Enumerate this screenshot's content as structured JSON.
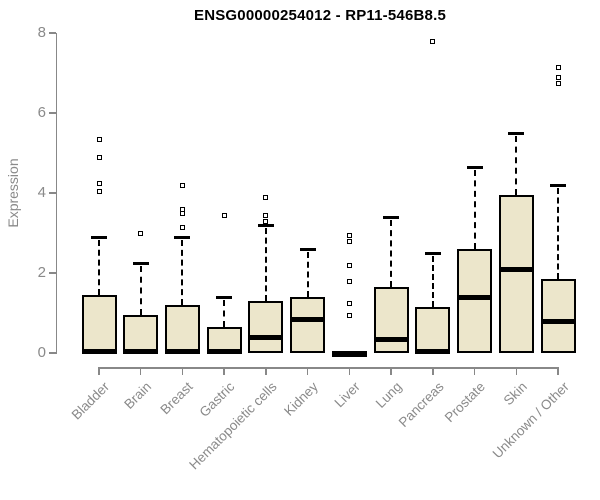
{
  "title": "ENSG00000254012 - RP11-546B8.5",
  "y_axis": {
    "label": "Expression"
  },
  "chart_data": {
    "type": "boxplot",
    "title": "ENSG00000254012 - RP11-546B8.5",
    "xlabel": "",
    "ylabel": "Expression",
    "ylim": [
      0,
      8
    ],
    "y_ticks": [
      0,
      2,
      4,
      6,
      8
    ],
    "grid": false,
    "box_fill_color": "#ece6cb",
    "box_line_color": "#000000",
    "axis_color": "#888888",
    "axis_text_color": "#8a8a8a",
    "categories": [
      "Bladder",
      "Brain",
      "Breast",
      "Gastric",
      "Hematopoietic cells",
      "Kidney",
      "Liver",
      "Lung",
      "Pancreas",
      "Prostate",
      "Skin",
      "Unknown / Other"
    ],
    "series": [
      {
        "category": "Bladder",
        "whisker_low": 0,
        "q1": 0,
        "median": 0.05,
        "q3": 1.45,
        "whisker_high": 2.9,
        "outliers": [
          4.05,
          4.25,
          4.9,
          5.35
        ]
      },
      {
        "category": "Brain",
        "whisker_low": 0,
        "q1": 0,
        "median": 0.05,
        "q3": 0.95,
        "whisker_high": 2.25,
        "outliers": [
          3.0
        ]
      },
      {
        "category": "Breast",
        "whisker_low": 0,
        "q1": 0,
        "median": 0.05,
        "q3": 1.2,
        "whisker_high": 2.9,
        "outliers": [
          3.15,
          3.5,
          3.6,
          4.2
        ]
      },
      {
        "category": "Gastric",
        "whisker_low": 0,
        "q1": 0,
        "median": 0.05,
        "q3": 0.65,
        "whisker_high": 1.4,
        "outliers": [
          3.45
        ]
      },
      {
        "category": "Hematopoietic cells",
        "whisker_low": 0,
        "q1": 0,
        "median": 0.4,
        "q3": 1.3,
        "whisker_high": 3.2,
        "outliers": [
          3.3,
          3.45,
          3.9
        ]
      },
      {
        "category": "Kidney",
        "whisker_low": 0,
        "q1": 0,
        "median": 0.85,
        "q3": 1.4,
        "whisker_high": 2.6,
        "outliers": []
      },
      {
        "category": "Liver",
        "whisker_low": 0,
        "q1": 0,
        "median": 0,
        "q3": 0,
        "whisker_high": 0,
        "outliers": [
          0.95,
          1.25,
          1.8,
          2.2,
          2.8,
          2.95
        ]
      },
      {
        "category": "Lung",
        "whisker_low": 0,
        "q1": 0,
        "median": 0.35,
        "q3": 1.65,
        "whisker_high": 3.4,
        "outliers": []
      },
      {
        "category": "Pancreas",
        "whisker_low": 0,
        "q1": 0,
        "median": 0.05,
        "q3": 1.15,
        "whisker_high": 2.5,
        "outliers": [
          7.8
        ]
      },
      {
        "category": "Prostate",
        "whisker_low": 0,
        "q1": 0,
        "median": 1.4,
        "q3": 2.6,
        "whisker_high": 4.65,
        "outliers": []
      },
      {
        "category": "Skin",
        "whisker_low": 0,
        "q1": 0,
        "median": 2.1,
        "q3": 3.95,
        "whisker_high": 5.5,
        "outliers": []
      },
      {
        "category": "Unknown / Other",
        "whisker_low": 0,
        "q1": 0,
        "median": 0.8,
        "q3": 1.85,
        "whisker_high": 4.2,
        "outliers": [
          6.75,
          6.9,
          7.15
        ]
      }
    ]
  }
}
